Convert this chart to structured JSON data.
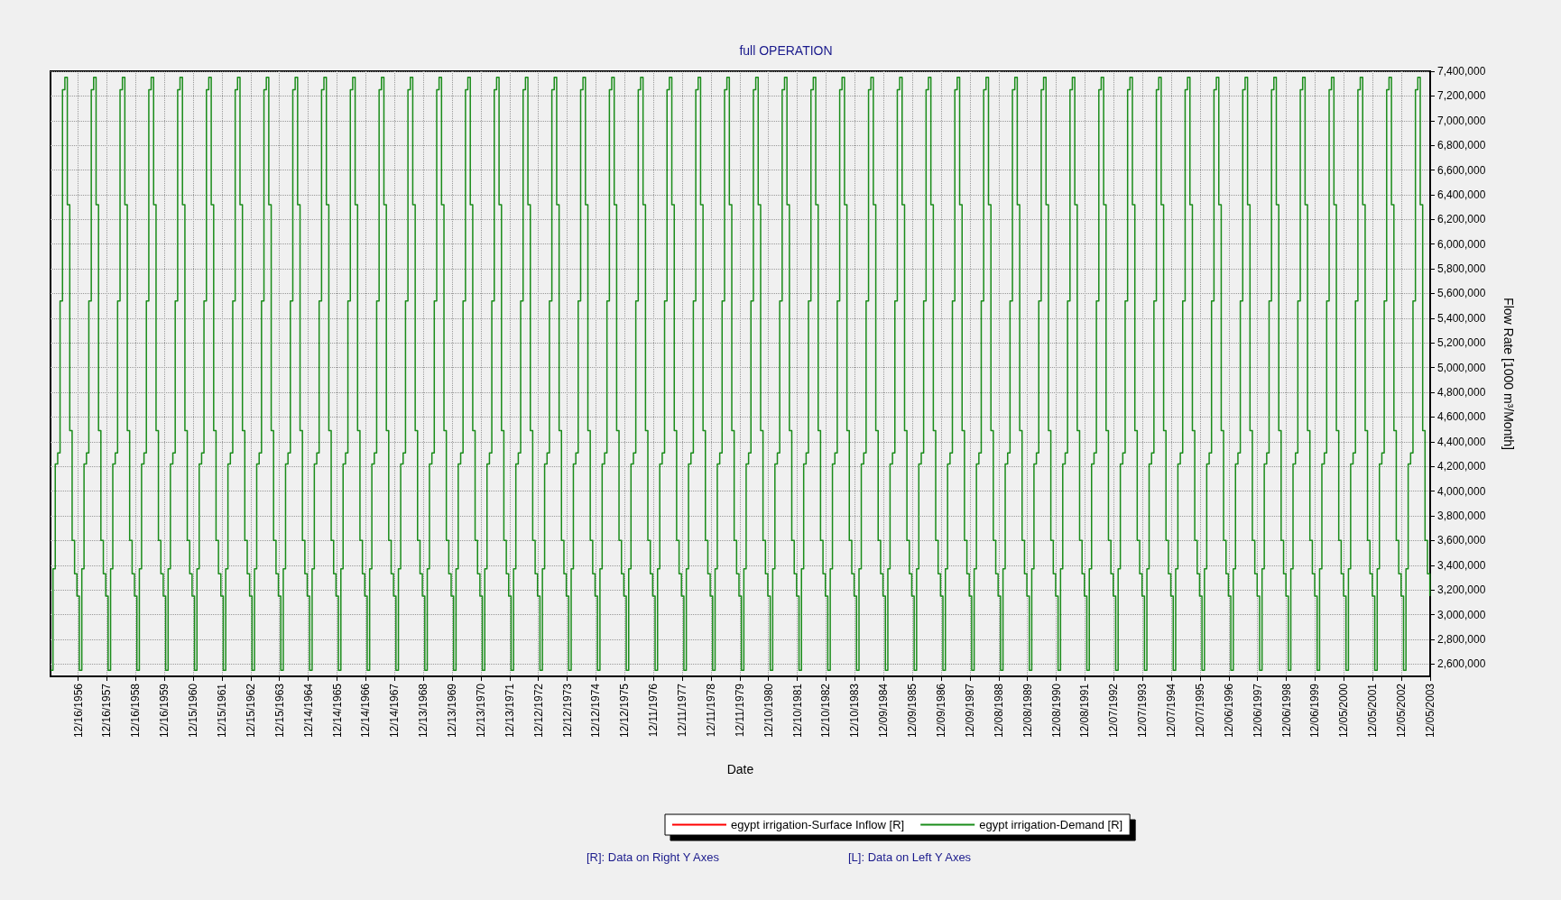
{
  "chart_data": {
    "type": "step",
    "title": "full OPERATION",
    "xlabel": "Date",
    "y2label": "Flow Rate [1000 m³/Month]",
    "annotations": [
      "[R]: Data on Right Y Axes",
      "[L]: Data on Left Y Axes"
    ],
    "grid": true,
    "legend": "bottom",
    "marker": "none",
    "line_style": "solid",
    "xlim": [
      "1956-01-01",
      "2003-12-05"
    ],
    "xticks": [
      {
        "value": "1956-12-16",
        "label": "12/16/1956"
      },
      {
        "value": "1957-12-16",
        "label": "12/16/1957"
      },
      {
        "value": "1958-12-16",
        "label": "12/16/1958"
      },
      {
        "value": "1959-12-16",
        "label": "12/16/1959"
      },
      {
        "value": "1960-12-15",
        "label": "12/15/1960"
      },
      {
        "value": "1961-12-15",
        "label": "12/15/1961"
      },
      {
        "value": "1962-12-15",
        "label": "12/15/1962"
      },
      {
        "value": "1963-12-15",
        "label": "12/15/1963"
      },
      {
        "value": "1964-12-14",
        "label": "12/14/1964"
      },
      {
        "value": "1965-12-14",
        "label": "12/14/1965"
      },
      {
        "value": "1966-12-14",
        "label": "12/14/1966"
      },
      {
        "value": "1967-12-14",
        "label": "12/14/1967"
      },
      {
        "value": "1968-12-13",
        "label": "12/13/1968"
      },
      {
        "value": "1969-12-13",
        "label": "12/13/1969"
      },
      {
        "value": "1970-12-13",
        "label": "12/13/1970"
      },
      {
        "value": "1971-12-13",
        "label": "12/13/1971"
      },
      {
        "value": "1972-12-12",
        "label": "12/12/1972"
      },
      {
        "value": "1973-12-12",
        "label": "12/12/1973"
      },
      {
        "value": "1974-12-12",
        "label": "12/12/1974"
      },
      {
        "value": "1975-12-12",
        "label": "12/12/1975"
      },
      {
        "value": "1976-12-11",
        "label": "12/11/1976"
      },
      {
        "value": "1977-12-11",
        "label": "12/11/1977"
      },
      {
        "value": "1978-12-11",
        "label": "12/11/1978"
      },
      {
        "value": "1979-12-11",
        "label": "12/11/1979"
      },
      {
        "value": "1980-12-10",
        "label": "12/10/1980"
      },
      {
        "value": "1981-12-10",
        "label": "12/10/1981"
      },
      {
        "value": "1982-12-10",
        "label": "12/10/1982"
      },
      {
        "value": "1983-12-10",
        "label": "12/10/1983"
      },
      {
        "value": "1984-12-09",
        "label": "12/09/1984"
      },
      {
        "value": "1985-12-09",
        "label": "12/09/1985"
      },
      {
        "value": "1986-12-09",
        "label": "12/09/1986"
      },
      {
        "value": "1987-12-09",
        "label": "12/09/1987"
      },
      {
        "value": "1988-12-08",
        "label": "12/08/1988"
      },
      {
        "value": "1989-12-08",
        "label": "12/08/1989"
      },
      {
        "value": "1990-12-08",
        "label": "12/08/1990"
      },
      {
        "value": "1991-12-08",
        "label": "12/08/1991"
      },
      {
        "value": "1992-12-07",
        "label": "12/07/1992"
      },
      {
        "value": "1993-12-07",
        "label": "12/07/1993"
      },
      {
        "value": "1994-12-07",
        "label": "12/07/1994"
      },
      {
        "value": "1995-12-07",
        "label": "12/07/1995"
      },
      {
        "value": "1996-12-06",
        "label": "12/06/1996"
      },
      {
        "value": "1997-12-06",
        "label": "12/06/1997"
      },
      {
        "value": "1998-12-06",
        "label": "12/06/1998"
      },
      {
        "value": "1999-12-06",
        "label": "12/06/1999"
      },
      {
        "value": "2000-12-05",
        "label": "12/05/2000"
      },
      {
        "value": "2001-12-05",
        "label": "12/05/2001"
      },
      {
        "value": "2002-12-05",
        "label": "12/05/2002"
      },
      {
        "value": "2003-12-05",
        "label": "12/05/2003"
      }
    ],
    "y2lim": [
      2500000,
      7400000
    ],
    "y2ticks": [
      {
        "value": 2600000,
        "label": "2,600,000"
      },
      {
        "value": 2800000,
        "label": "2,800,000"
      },
      {
        "value": 3000000,
        "label": "3,000,000"
      },
      {
        "value": 3200000,
        "label": "3,200,000"
      },
      {
        "value": 3400000,
        "label": "3,400,000"
      },
      {
        "value": 3600000,
        "label": "3,600,000"
      },
      {
        "value": 3800000,
        "label": "3,800,000"
      },
      {
        "value": 4000000,
        "label": "4,000,000"
      },
      {
        "value": 4200000,
        "label": "4,200,000"
      },
      {
        "value": 4400000,
        "label": "4,400,000"
      },
      {
        "value": 4600000,
        "label": "4,600,000"
      },
      {
        "value": 4800000,
        "label": "4,800,000"
      },
      {
        "value": 5000000,
        "label": "5,000,000"
      },
      {
        "value": 5200000,
        "label": "5,200,000"
      },
      {
        "value": 5400000,
        "label": "5,400,000"
      },
      {
        "value": 5600000,
        "label": "5,600,000"
      },
      {
        "value": 5800000,
        "label": "5,800,000"
      },
      {
        "value": 6000000,
        "label": "6,000,000"
      },
      {
        "value": 6200000,
        "label": "6,200,000"
      },
      {
        "value": 6400000,
        "label": "6,400,000"
      },
      {
        "value": 6600000,
        "label": "6,600,000"
      },
      {
        "value": 6800000,
        "label": "6,800,000"
      },
      {
        "value": 7000000,
        "label": "7,000,000"
      },
      {
        "value": 7200000,
        "label": "7,200,000"
      },
      {
        "value": 7400000,
        "label": "7,400,000"
      }
    ],
    "x": [
      "1956-01",
      "1956-02",
      "1956-03",
      "1956-04",
      "1956-05",
      "1956-06",
      "1956-07",
      "1956-08",
      "1956-09",
      "1956-10",
      "1956-11",
      "1956-12",
      "1957-01",
      "1957-02",
      "1957-03",
      "1957-04",
      "1957-05",
      "1957-06",
      "1957-07",
      "1957-08",
      "1957-09",
      "1957-10",
      "1957-11",
      "1957-12",
      "1958-01",
      "1958-02",
      "1958-03",
      "1958-04",
      "1958-05",
      "1958-06",
      "1958-07",
      "1958-08",
      "1958-09",
      "1958-10",
      "1958-11",
      "1958-12",
      "1959-01",
      "1959-02",
      "1959-03",
      "1959-04",
      "1959-05",
      "1959-06",
      "1959-07",
      "1959-08",
      "1959-09",
      "1959-10",
      "1959-11",
      "1959-12",
      "1960-01",
      "1960-02",
      "1960-03",
      "1960-04",
      "1960-05",
      "1960-06",
      "1960-07",
      "1960-08",
      "1960-09",
      "1960-10",
      "1960-11",
      "1960-12",
      "1961-01",
      "1961-02",
      "1961-03",
      "1961-04",
      "1961-05",
      "1961-06",
      "1961-07",
      "1961-08",
      "1961-09",
      "1961-10",
      "1961-11",
      "1961-12",
      "1962-01",
      "1962-02",
      "1962-03",
      "1962-04",
      "1962-05",
      "1962-06",
      "1962-07",
      "1962-08",
      "1962-09",
      "1962-10",
      "1962-11",
      "1962-12",
      "1963-01",
      "1963-02",
      "1963-03",
      "1963-04",
      "1963-05",
      "1963-06",
      "1963-07",
      "1963-08",
      "1963-09",
      "1963-10",
      "1963-11",
      "1963-12",
      "1964-01",
      "1964-02",
      "1964-03",
      "1964-04",
      "1964-05",
      "1964-06",
      "1964-07",
      "1964-08",
      "1964-09",
      "1964-10",
      "1964-11",
      "1964-12",
      "1965-01",
      "1965-02",
      "1965-03",
      "1965-04",
      "1965-05",
      "1965-06",
      "1965-07",
      "1965-08",
      "1965-09",
      "1965-10",
      "1965-11",
      "1965-12",
      "1966-01",
      "1966-02",
      "1966-03",
      "1966-04",
      "1966-05",
      "1966-06",
      "1966-07",
      "1966-08",
      "1966-09",
      "1966-10",
      "1966-11",
      "1966-12",
      "1967-01",
      "1967-02",
      "1967-03",
      "1967-04",
      "1967-05",
      "1967-06",
      "1967-07",
      "1967-08",
      "1967-09",
      "1967-10",
      "1967-11",
      "1967-12",
      "1968-01",
      "1968-02",
      "1968-03",
      "1968-04",
      "1968-05",
      "1968-06",
      "1968-07",
      "1968-08",
      "1968-09",
      "1968-10",
      "1968-11",
      "1968-12",
      "1969-01",
      "1969-02",
      "1969-03",
      "1969-04",
      "1969-05",
      "1969-06",
      "1969-07",
      "1969-08",
      "1969-09",
      "1969-10",
      "1969-11",
      "1969-12",
      "1970-01",
      "1970-02",
      "1970-03",
      "1970-04",
      "1970-05",
      "1970-06",
      "1970-07",
      "1970-08",
      "1970-09",
      "1970-10",
      "1970-11",
      "1970-12",
      "1971-01",
      "1971-02",
      "1971-03",
      "1971-04",
      "1971-05",
      "1971-06",
      "1971-07",
      "1971-08",
      "1971-09",
      "1971-10",
      "1971-11",
      "1971-12",
      "1972-01",
      "1972-02",
      "1972-03",
      "1972-04",
      "1972-05",
      "1972-06",
      "1972-07",
      "1972-08",
      "1972-09",
      "1972-10",
      "1972-11",
      "1972-12",
      "1973-01",
      "1973-02",
      "1973-03",
      "1973-04",
      "1973-05",
      "1973-06",
      "1973-07",
      "1973-08",
      "1973-09",
      "1973-10",
      "1973-11",
      "1973-12",
      "1974-01",
      "1974-02",
      "1974-03",
      "1974-04",
      "1974-05",
      "1974-06",
      "1974-07",
      "1974-08",
      "1974-09",
      "1974-10",
      "1974-11",
      "1974-12",
      "1975-01",
      "1975-02",
      "1975-03",
      "1975-04",
      "1975-05",
      "1975-06",
      "1975-07",
      "1975-08",
      "1975-09",
      "1975-10",
      "1975-11",
      "1975-12",
      "1976-01",
      "1976-02",
      "1976-03",
      "1976-04",
      "1976-05",
      "1976-06",
      "1976-07",
      "1976-08",
      "1976-09",
      "1976-10",
      "1976-11",
      "1976-12",
      "1977-01",
      "1977-02",
      "1977-03",
      "1977-04",
      "1977-05",
      "1977-06",
      "1977-07",
      "1977-08",
      "1977-09",
      "1977-10",
      "1977-11",
      "1977-12",
      "1978-01",
      "1978-02",
      "1978-03",
      "1978-04",
      "1978-05",
      "1978-06",
      "1978-07",
      "1978-08",
      "1978-09",
      "1978-10",
      "1978-11",
      "1978-12",
      "1979-01",
      "1979-02",
      "1979-03",
      "1979-04",
      "1979-05",
      "1979-06",
      "1979-07",
      "1979-08",
      "1979-09",
      "1979-10",
      "1979-11",
      "1979-12",
      "1980-01",
      "1980-02",
      "1980-03",
      "1980-04",
      "1980-05",
      "1980-06",
      "1980-07",
      "1980-08",
      "1980-09",
      "1980-10",
      "1980-11",
      "1980-12",
      "1981-01",
      "1981-02",
      "1981-03",
      "1981-04",
      "1981-05",
      "1981-06",
      "1981-07",
      "1981-08",
      "1981-09",
      "1981-10",
      "1981-11",
      "1981-12",
      "1982-01",
      "1982-02",
      "1982-03",
      "1982-04",
      "1982-05",
      "1982-06",
      "1982-07",
      "1982-08",
      "1982-09",
      "1982-10",
      "1982-11",
      "1982-12",
      "1983-01",
      "1983-02",
      "1983-03",
      "1983-04",
      "1983-05",
      "1983-06",
      "1983-07",
      "1983-08",
      "1983-09",
      "1983-10",
      "1983-11",
      "1983-12",
      "1984-01",
      "1984-02",
      "1984-03",
      "1984-04",
      "1984-05",
      "1984-06",
      "1984-07",
      "1984-08",
      "1984-09",
      "1984-10",
      "1984-11",
      "1984-12",
      "1985-01",
      "1985-02",
      "1985-03",
      "1985-04",
      "1985-05",
      "1985-06",
      "1985-07",
      "1985-08",
      "1985-09",
      "1985-10",
      "1985-11",
      "1985-12",
      "1986-01",
      "1986-02",
      "1986-03",
      "1986-04",
      "1986-05",
      "1986-06",
      "1986-07",
      "1986-08",
      "1986-09",
      "1986-10",
      "1986-11",
      "1986-12",
      "1987-01",
      "1987-02",
      "1987-03",
      "1987-04",
      "1987-05",
      "1987-06",
      "1987-07",
      "1987-08",
      "1987-09",
      "1987-10",
      "1987-11",
      "1987-12",
      "1988-01",
      "1988-02",
      "1988-03",
      "1988-04",
      "1988-05",
      "1988-06",
      "1988-07",
      "1988-08",
      "1988-09",
      "1988-10",
      "1988-11",
      "1988-12",
      "1989-01",
      "1989-02",
      "1989-03",
      "1989-04",
      "1989-05",
      "1989-06",
      "1989-07",
      "1989-08",
      "1989-09",
      "1989-10",
      "1989-11",
      "1989-12",
      "1990-01",
      "1990-02",
      "1990-03",
      "1990-04",
      "1990-05",
      "1990-06",
      "1990-07",
      "1990-08",
      "1990-09",
      "1990-10",
      "1990-11",
      "1990-12",
      "1991-01",
      "1991-02",
      "1991-03",
      "1991-04",
      "1991-05",
      "1991-06",
      "1991-07",
      "1991-08",
      "1991-09",
      "1991-10",
      "1991-11",
      "1991-12",
      "1992-01",
      "1992-02",
      "1992-03",
      "1992-04",
      "1992-05",
      "1992-06",
      "1992-07",
      "1992-08",
      "1992-09",
      "1992-10",
      "1992-11",
      "1992-12",
      "1993-01",
      "1993-02",
      "1993-03",
      "1993-04",
      "1993-05",
      "1993-06",
      "1993-07",
      "1993-08",
      "1993-09",
      "1993-10",
      "1993-11",
      "1993-12",
      "1994-01",
      "1994-02",
      "1994-03",
      "1994-04",
      "1994-05",
      "1994-06",
      "1994-07",
      "1994-08",
      "1994-09",
      "1994-10",
      "1994-11",
      "1994-12",
      "1995-01",
      "1995-02",
      "1995-03",
      "1995-04",
      "1995-05",
      "1995-06",
      "1995-07",
      "1995-08",
      "1995-09",
      "1995-10",
      "1995-11",
      "1995-12",
      "1996-01",
      "1996-02",
      "1996-03",
      "1996-04",
      "1996-05",
      "1996-06",
      "1996-07",
      "1996-08",
      "1996-09",
      "1996-10",
      "1996-11",
      "1996-12",
      "1997-01",
      "1997-02",
      "1997-03",
      "1997-04",
      "1997-05",
      "1997-06",
      "1997-07",
      "1997-08",
      "1997-09",
      "1997-10",
      "1997-11",
      "1997-12",
      "1998-01",
      "1998-02",
      "1998-03",
      "1998-04",
      "1998-05",
      "1998-06",
      "1998-07",
      "1998-08",
      "1998-09",
      "1998-10",
      "1998-11",
      "1998-12",
      "1999-01",
      "1999-02",
      "1999-03",
      "1999-04",
      "1999-05",
      "1999-06",
      "1999-07",
      "1999-08",
      "1999-09",
      "1999-10",
      "1999-11",
      "1999-12",
      "2000-01",
      "2000-02",
      "2000-03",
      "2000-04",
      "2000-05",
      "2000-06",
      "2000-07",
      "2000-08",
      "2000-09",
      "2000-10",
      "2000-11",
      "2000-12",
      "2001-01",
      "2001-02",
      "2001-03",
      "2001-04",
      "2001-05",
      "2001-06",
      "2001-07",
      "2001-08",
      "2001-09",
      "2001-10",
      "2001-11",
      "2001-12",
      "2002-01",
      "2002-02",
      "2002-03",
      "2002-04",
      "2002-05",
      "2002-06",
      "2002-07",
      "2002-08",
      "2002-09",
      "2002-10",
      "2002-11",
      "2002-12",
      "2003-01",
      "2003-02",
      "2003-03",
      "2003-04",
      "2003-05",
      "2003-06",
      "2003-07",
      "2003-08",
      "2003-09",
      "2003-10",
      "2003-11",
      "2003-12"
    ],
    "series": [
      {
        "name": "egypt irrigation-Surface Inflow [R]",
        "color": "#ff0000",
        "axis": "y2",
        "values": [
          null,
          null,
          null,
          null,
          null,
          null,
          null,
          null,
          null,
          null,
          null,
          null,
          null,
          null,
          null,
          null,
          null,
          null,
          null,
          null,
          null,
          null,
          null,
          null,
          null,
          null,
          null,
          null,
          null,
          null,
          null,
          null,
          null,
          null,
          null,
          null,
          null,
          null,
          null,
          null,
          null,
          null,
          null,
          null,
          null,
          null,
          null,
          null,
          null,
          null,
          null,
          null,
          null,
          null,
          null,
          null,
          null,
          null,
          null,
          null,
          null,
          null,
          null,
          null,
          null,
          null,
          null,
          null,
          null,
          null,
          null,
          null,
          null,
          null,
          null,
          null,
          null,
          null,
          null,
          null,
          null,
          null,
          null,
          null,
          null,
          null,
          null,
          null,
          null,
          null,
          null,
          null,
          null,
          null,
          null,
          null,
          null,
          null,
          null,
          null,
          null,
          null,
          null,
          null,
          null,
          null,
          null,
          null,
          null,
          null,
          null,
          null,
          null,
          null,
          null,
          null,
          null,
          null,
          null,
          null,
          null,
          null,
          null,
          null,
          null,
          null,
          null,
          null,
          null,
          null,
          null,
          null,
          null,
          null,
          null,
          null,
          null,
          null,
          null,
          null,
          null,
          null,
          null,
          null,
          null,
          null,
          null,
          null,
          null,
          null,
          null,
          null,
          null,
          null,
          null,
          null,
          null,
          null,
          null,
          null,
          null,
          null,
          null,
          null,
          null,
          null,
          null,
          null,
          null,
          null,
          null,
          null,
          null,
          null,
          null,
          null,
          null,
          null,
          null,
          null,
          null,
          null,
          null,
          null,
          null,
          null,
          null,
          null,
          null,
          null,
          null,
          null,
          null,
          null,
          null,
          null,
          null,
          null,
          null,
          null,
          null,
          null,
          null,
          null,
          null,
          null,
          null,
          null,
          null,
          null,
          null,
          null,
          null,
          null,
          null,
          null,
          null,
          null,
          null,
          null,
          null,
          null,
          null,
          null,
          null,
          null,
          null,
          null,
          null,
          null,
          null,
          null,
          null,
          null,
          null,
          null,
          null,
          null,
          null,
          null,
          null,
          null,
          null,
          null,
          null,
          null,
          null,
          null,
          null,
          null,
          null,
          null,
          null,
          null,
          null,
          null,
          null,
          null,
          null,
          null,
          null,
          null,
          null,
          null,
          null,
          null,
          null,
          null,
          null,
          null,
          null,
          null,
          null,
          null,
          null,
          null,
          null,
          null,
          null,
          null,
          null,
          null,
          null,
          null,
          null,
          null,
          null,
          null,
          null,
          null,
          null,
          null,
          null,
          null,
          null,
          null,
          null,
          null,
          null,
          null,
          null,
          null,
          null,
          null,
          null,
          null,
          null,
          null,
          null,
          null,
          null,
          null,
          null,
          null,
          null,
          null,
          null,
          null,
          null,
          null,
          null,
          null,
          null,
          null,
          null,
          null,
          null,
          null,
          null,
          null,
          null,
          null,
          null,
          null,
          null,
          null,
          null,
          null,
          null,
          null,
          null,
          null,
          null,
          null,
          null,
          null,
          null,
          null,
          null,
          null,
          null,
          null,
          null,
          null,
          null,
          null,
          null,
          null,
          null,
          null,
          null,
          null,
          null,
          null,
          null,
          null,
          null,
          null,
          null,
          null,
          null,
          null,
          null,
          null,
          null,
          null,
          null,
          null,
          null,
          null,
          null,
          null,
          null,
          null,
          null,
          null,
          null,
          null,
          null,
          null,
          null,
          null,
          null,
          null,
          null,
          null,
          null,
          null,
          null,
          null,
          null,
          null,
          null,
          null,
          null,
          null,
          null,
          null,
          null,
          null,
          null,
          null,
          null,
          null,
          null,
          null,
          null,
          null,
          null,
          null,
          null,
          null,
          null,
          null,
          null,
          null,
          null,
          null,
          null,
          null,
          null,
          null,
          null,
          null,
          null,
          null,
          null,
          null,
          null,
          null,
          null,
          null,
          null,
          null,
          null,
          null,
          null,
          null,
          null,
          null,
          null,
          null,
          null,
          null,
          null,
          null,
          null,
          null,
          null,
          null,
          null,
          null,
          null,
          null,
          null,
          null,
          null,
          null,
          null,
          null,
          null,
          null,
          null,
          null,
          null,
          null,
          null,
          null,
          null,
          null,
          null,
          null,
          null,
          null,
          null,
          null,
          null,
          null,
          null,
          null,
          null,
          null,
          null,
          null,
          null,
          null,
          null,
          null,
          null,
          null,
          null,
          null,
          null,
          null,
          null,
          null,
          null,
          null,
          null,
          null,
          null,
          null,
          null,
          null,
          null,
          null,
          null,
          null,
          null,
          null,
          null,
          null,
          null,
          null,
          null,
          null,
          null,
          null,
          null,
          null,
          null,
          null,
          null,
          null,
          null,
          null,
          null,
          null,
          null,
          null,
          null,
          null,
          null,
          null,
          null,
          null,
          null,
          null,
          null,
          null,
          null,
          null,
          null,
          null,
          null,
          null,
          null,
          null,
          null,
          null,
          null,
          null,
          null,
          null,
          null,
          null,
          null,
          null,
          null,
          null,
          null,
          null,
          null,
          null,
          null,
          null
        ]
      },
      {
        "name": "egypt irrigation-Demand [R]",
        "color": "#1a8c1a",
        "axis": "y2",
        "values": [
          2550000,
          3370000,
          4220000,
          4310000,
          5540000,
          7250000,
          7350000,
          6320000,
          4490000,
          3600000,
          3330000,
          3150000,
          2550000,
          3370000,
          4220000,
          4310000,
          5540000,
          7250000,
          7350000,
          6320000,
          4490000,
          3600000,
          3330000,
          3150000,
          2550000,
          3370000,
          4220000,
          4310000,
          5540000,
          7250000,
          7350000,
          6320000,
          4490000,
          3600000,
          3330000,
          3150000,
          2550000,
          3370000,
          4220000,
          4310000,
          5540000,
          7250000,
          7350000,
          6320000,
          4490000,
          3600000,
          3330000,
          3150000,
          2550000,
          3370000,
          4220000,
          4310000,
          5540000,
          7250000,
          7350000,
          6320000,
          4490000,
          3600000,
          3330000,
          3150000,
          2550000,
          3370000,
          4220000,
          4310000,
          5540000,
          7250000,
          7350000,
          6320000,
          4490000,
          3600000,
          3330000,
          3150000,
          2550000,
          3370000,
          4220000,
          4310000,
          5540000,
          7250000,
          7350000,
          6320000,
          4490000,
          3600000,
          3330000,
          3150000,
          2550000,
          3370000,
          4220000,
          4310000,
          5540000,
          7250000,
          7350000,
          6320000,
          4490000,
          3600000,
          3330000,
          3150000,
          2550000,
          3370000,
          4220000,
          4310000,
          5540000,
          7250000,
          7350000,
          6320000,
          4490000,
          3600000,
          3330000,
          3150000,
          2550000,
          3370000,
          4220000,
          4310000,
          5540000,
          7250000,
          7350000,
          6320000,
          4490000,
          3600000,
          3330000,
          3150000,
          2550000,
          3370000,
          4220000,
          4310000,
          5540000,
          7250000,
          7350000,
          6320000,
          4490000,
          3600000,
          3330000,
          3150000,
          2550000,
          3370000,
          4220000,
          4310000,
          5540000,
          7250000,
          7350000,
          6320000,
          4490000,
          3600000,
          3330000,
          3150000,
          2550000,
          3370000,
          4220000,
          4310000,
          5540000,
          7250000,
          7350000,
          6320000,
          4490000,
          3600000,
          3330000,
          3150000,
          2550000,
          3370000,
          4220000,
          4310000,
          5540000,
          7250000,
          7350000,
          6320000,
          4490000,
          3600000,
          3330000,
          3150000,
          2550000,
          3370000,
          4220000,
          4310000,
          5540000,
          7250000,
          7350000,
          6320000,
          4490000,
          3600000,
          3330000,
          3150000,
          2550000,
          3370000,
          4220000,
          4310000,
          5540000,
          7250000,
          7350000,
          6320000,
          4490000,
          3600000,
          3330000,
          3150000,
          2550000,
          3370000,
          4220000,
          4310000,
          5540000,
          7250000,
          7350000,
          6320000,
          4490000,
          3600000,
          3330000,
          3150000,
          2550000,
          3370000,
          4220000,
          4310000,
          5540000,
          7250000,
          7350000,
          6320000,
          4490000,
          3600000,
          3330000,
          3150000,
          2550000,
          3370000,
          4220000,
          4310000,
          5540000,
          7250000,
          7350000,
          6320000,
          4490000,
          3600000,
          3330000,
          3150000,
          2550000,
          3370000,
          4220000,
          4310000,
          5540000,
          7250000,
          7350000,
          6320000,
          4490000,
          3600000,
          3330000,
          3150000,
          2550000,
          3370000,
          4220000,
          4310000,
          5540000,
          7250000,
          7350000,
          6320000,
          4490000,
          3600000,
          3330000,
          3150000,
          2550000,
          3370000,
          4220000,
          4310000,
          5540000,
          7250000,
          7350000,
          6320000,
          4490000,
          3600000,
          3330000,
          3150000,
          2550000,
          3370000,
          4220000,
          4310000,
          5540000,
          7250000,
          7350000,
          6320000,
          4490000,
          3600000,
          3330000,
          3150000,
          2550000,
          3370000,
          4220000,
          4310000,
          5540000,
          7250000,
          7350000,
          6320000,
          4490000,
          3600000,
          3330000,
          3150000,
          2550000,
          3370000,
          4220000,
          4310000,
          5540000,
          7250000,
          7350000,
          6320000,
          4490000,
          3600000,
          3330000,
          3150000,
          2550000,
          3370000,
          4220000,
          4310000,
          5540000,
          7250000,
          7350000,
          6320000,
          4490000,
          3600000,
          3330000,
          3150000,
          2550000,
          3370000,
          4220000,
          4310000,
          5540000,
          7250000,
          7350000,
          6320000,
          4490000,
          3600000,
          3330000,
          3150000,
          2550000,
          3370000,
          4220000,
          4310000,
          5540000,
          7250000,
          7350000,
          6320000,
          4490000,
          3600000,
          3330000,
          3150000,
          2550000,
          3370000,
          4220000,
          4310000,
          5540000,
          7250000,
          7350000,
          6320000,
          4490000,
          3600000,
          3330000,
          3150000,
          2550000,
          3370000,
          4220000,
          4310000,
          5540000,
          7250000,
          7350000,
          6320000,
          4490000,
          3600000,
          3330000,
          3150000,
          2550000,
          3370000,
          4220000,
          4310000,
          5540000,
          7250000,
          7350000,
          6320000,
          4490000,
          3600000,
          3330000,
          3150000,
          2550000,
          3370000,
          4220000,
          4310000,
          5540000,
          7250000,
          7350000,
          6320000,
          4490000,
          3600000,
          3330000,
          3150000,
          2550000,
          3370000,
          4220000,
          4310000,
          5540000,
          7250000,
          7350000,
          6320000,
          4490000,
          3600000,
          3330000,
          3150000,
          2550000,
          3370000,
          4220000,
          4310000,
          5540000,
          7250000,
          7350000,
          6320000,
          4490000,
          3600000,
          3330000,
          3150000,
          2550000,
          3370000,
          4220000,
          4310000,
          5540000,
          7250000,
          7350000,
          6320000,
          4490000,
          3600000,
          3330000,
          3150000,
          2550000,
          3370000,
          4220000,
          4310000,
          5540000,
          7250000,
          7350000,
          6320000,
          4490000,
          3600000,
          3330000,
          3150000,
          2550000,
          3370000,
          4220000,
          4310000,
          5540000,
          7250000,
          7350000,
          6320000,
          4490000,
          3600000,
          3330000,
          3150000,
          2550000,
          3370000,
          4220000,
          4310000,
          5540000,
          7250000,
          7350000,
          6320000,
          4490000,
          3600000,
          3330000,
          3150000,
          2550000,
          3370000,
          4220000,
          4310000,
          5540000,
          7250000,
          7350000,
          6320000,
          4490000,
          3600000,
          3330000,
          3150000,
          2550000,
          3370000,
          4220000,
          4310000,
          5540000,
          7250000,
          7350000,
          6320000,
          4490000,
          3600000,
          3330000,
          3150000,
          2550000,
          3370000,
          4220000,
          4310000,
          5540000,
          7250000,
          7350000,
          6320000,
          4490000,
          3600000,
          3330000,
          3150000,
          2550000,
          3370000,
          4220000,
          4310000,
          5540000,
          7250000,
          7350000,
          6320000,
          4490000,
          3600000,
          3330000,
          3150000,
          2550000,
          3370000,
          4220000,
          4310000,
          5540000,
          7250000,
          7350000,
          6320000,
          4490000,
          3600000,
          3330000,
          3150000,
          2550000,
          3370000,
          4220000,
          4310000,
          5540000,
          7250000,
          7350000,
          6320000,
          4490000,
          3600000,
          3330000,
          3150000,
          2550000,
          3370000,
          4220000,
          4310000,
          5540000,
          7250000,
          7350000,
          6320000,
          4490000,
          3600000,
          3330000,
          3150000,
          2550000,
          3370000,
          4220000,
          4310000,
          5540000,
          7250000,
          7350000,
          6320000,
          4490000,
          3600000,
          3330000,
          3150000,
          2550000,
          3370000,
          4220000,
          4310000,
          5540000,
          7250000,
          7350000,
          6320000,
          4490000,
          3600000,
          3330000,
          3150000,
          2550000,
          3370000,
          4220000,
          4310000,
          5540000,
          7250000,
          7350000,
          6320000,
          4490000,
          3600000,
          3330000,
          3150000
        ]
      }
    ]
  }
}
